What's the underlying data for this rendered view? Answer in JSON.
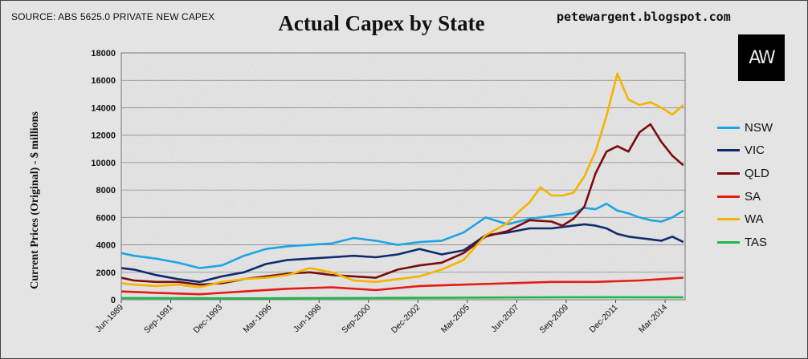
{
  "header": {
    "source": "SOURCE: ABS 5625.0 PRIVATE NEW CAPEX",
    "title": "Actual Capex by State",
    "site": "petewargent.blogspot.com",
    "logo_text": "AW"
  },
  "chart_data": {
    "type": "line",
    "title": "Actual Capex by State",
    "ylabel": "Current Prices (Original) - $ millions",
    "xlabel": "",
    "ylim": [
      0,
      18000
    ],
    "yticks": [
      0,
      2000,
      4000,
      6000,
      8000,
      10000,
      12000,
      14000,
      16000,
      18000
    ],
    "xlim": [
      1989.42,
      2015.08
    ],
    "xtick_labels": [
      "Jun-1989",
      "Sep-1991",
      "Dec-1993",
      "Mar-1996",
      "Jun-1998",
      "Sep-2000",
      "Dec-2002",
      "Mar-2005",
      "Jun-2007",
      "Sep-2009",
      "Dec-2011",
      "Mar-2014"
    ],
    "xtick_positions": [
      1989.42,
      1991.67,
      1993.92,
      1996.17,
      1998.42,
      2000.67,
      2002.92,
      2005.17,
      2007.42,
      2009.67,
      2011.92,
      2014.17
    ],
    "grid": true,
    "legend_position": "right",
    "series": [
      {
        "name": "NSW",
        "color": "#1ea4e4",
        "x": [
          1989.42,
          1990.0,
          1991.0,
          1992.0,
          1993.0,
          1994.0,
          1995.0,
          1996.0,
          1997.0,
          1998.0,
          1999.0,
          2000.0,
          2001.0,
          2002.0,
          2003.0,
          2004.0,
          2005.0,
          2006.0,
          2007.0,
          2008.0,
          2009.0,
          2010.0,
          2010.5,
          2011.0,
          2011.5,
          2012.0,
          2012.5,
          2013.0,
          2013.5,
          2014.0,
          2014.5,
          2015.0
        ],
        "y": [
          3400,
          3200,
          3000,
          2700,
          2300,
          2500,
          3200,
          3700,
          3900,
          4000,
          4100,
          4500,
          4300,
          4000,
          4200,
          4300,
          4900,
          6000,
          5500,
          5900,
          6100,
          6300,
          6700,
          6600,
          7000,
          6500,
          6300,
          6000,
          5800,
          5700,
          6000,
          6500
        ]
      },
      {
        "name": "VIC",
        "color": "#102a6e",
        "x": [
          1989.42,
          1990.0,
          1991.0,
          1992.0,
          1993.0,
          1994.0,
          1995.0,
          1996.0,
          1997.0,
          1998.0,
          1999.0,
          2000.0,
          2001.0,
          2002.0,
          2003.0,
          2004.0,
          2005.0,
          2006.0,
          2007.0,
          2008.0,
          2009.0,
          2010.0,
          2010.5,
          2011.0,
          2011.5,
          2012.0,
          2012.5,
          2013.0,
          2013.5,
          2014.0,
          2014.5,
          2015.0
        ],
        "y": [
          2300,
          2200,
          1800,
          1500,
          1300,
          1700,
          2000,
          2600,
          2900,
          3000,
          3100,
          3200,
          3100,
          3300,
          3700,
          3300,
          3600,
          4700,
          4900,
          5200,
          5200,
          5400,
          5500,
          5400,
          5200,
          4800,
          4600,
          4500,
          4400,
          4300,
          4600,
          4200
        ]
      },
      {
        "name": "QLD",
        "color": "#7a0c0c",
        "x": [
          1989.42,
          1990.0,
          1991.0,
          1992.0,
          1993.0,
          1994.0,
          1995.0,
          1996.0,
          1997.0,
          1998.0,
          1999.0,
          2000.0,
          2001.0,
          2002.0,
          2003.0,
          2004.0,
          2005.0,
          2006.0,
          2007.0,
          2008.0,
          2009.0,
          2009.5,
          2010.0,
          2010.5,
          2011.0,
          2011.5,
          2012.0,
          2012.5,
          2013.0,
          2013.5,
          2014.0,
          2014.5,
          2015.0
        ],
        "y": [
          1600,
          1400,
          1300,
          1300,
          1100,
          1200,
          1500,
          1700,
          1900,
          2000,
          1800,
          1700,
          1600,
          2200,
          2500,
          2700,
          3400,
          4600,
          5000,
          5800,
          5700,
          5400,
          5900,
          6800,
          9200,
          10800,
          11200,
          10800,
          12200,
          12800,
          11500,
          10500,
          9800
        ]
      },
      {
        "name": "SA",
        "color": "#e81a14",
        "x": [
          1989.42,
          1991.0,
          1993.0,
          1995.0,
          1997.0,
          1999.0,
          2001.0,
          2003.0,
          2005.0,
          2007.0,
          2009.0,
          2011.0,
          2013.0,
          2014.0,
          2015.0
        ],
        "y": [
          600,
          500,
          400,
          600,
          800,
          900,
          700,
          1000,
          1100,
          1200,
          1300,
          1300,
          1400,
          1500,
          1600
        ]
      },
      {
        "name": "WA",
        "color": "#f4b400",
        "x": [
          1989.42,
          1990.0,
          1991.0,
          1992.0,
          1993.0,
          1994.0,
          1995.0,
          1996.0,
          1997.0,
          1998.0,
          1999.0,
          2000.0,
          2001.0,
          2002.0,
          2003.0,
          2004.0,
          2005.0,
          2006.0,
          2007.0,
          2007.5,
          2008.0,
          2008.5,
          2009.0,
          2009.5,
          2010.0,
          2010.5,
          2011.0,
          2011.5,
          2012.0,
          2012.5,
          2013.0,
          2013.5,
          2014.0,
          2014.5,
          2015.0
        ],
        "y": [
          1200,
          1100,
          1000,
          1100,
          900,
          1300,
          1500,
          1600,
          1800,
          2300,
          2000,
          1400,
          1300,
          1500,
          1700,
          2200,
          2900,
          4700,
          5600,
          6400,
          7100,
          8200,
          7600,
          7600,
          7800,
          9000,
          10800,
          13400,
          16500,
          14600,
          14200,
          14400,
          14000,
          13500,
          14200
        ]
      },
      {
        "name": "TAS",
        "color": "#1fb84a",
        "x": [
          1989.42,
          1995.0,
          2000.0,
          2005.0,
          2010.0,
          2015.0
        ],
        "y": [
          120,
          100,
          120,
          150,
          180,
          170
        ]
      }
    ]
  }
}
